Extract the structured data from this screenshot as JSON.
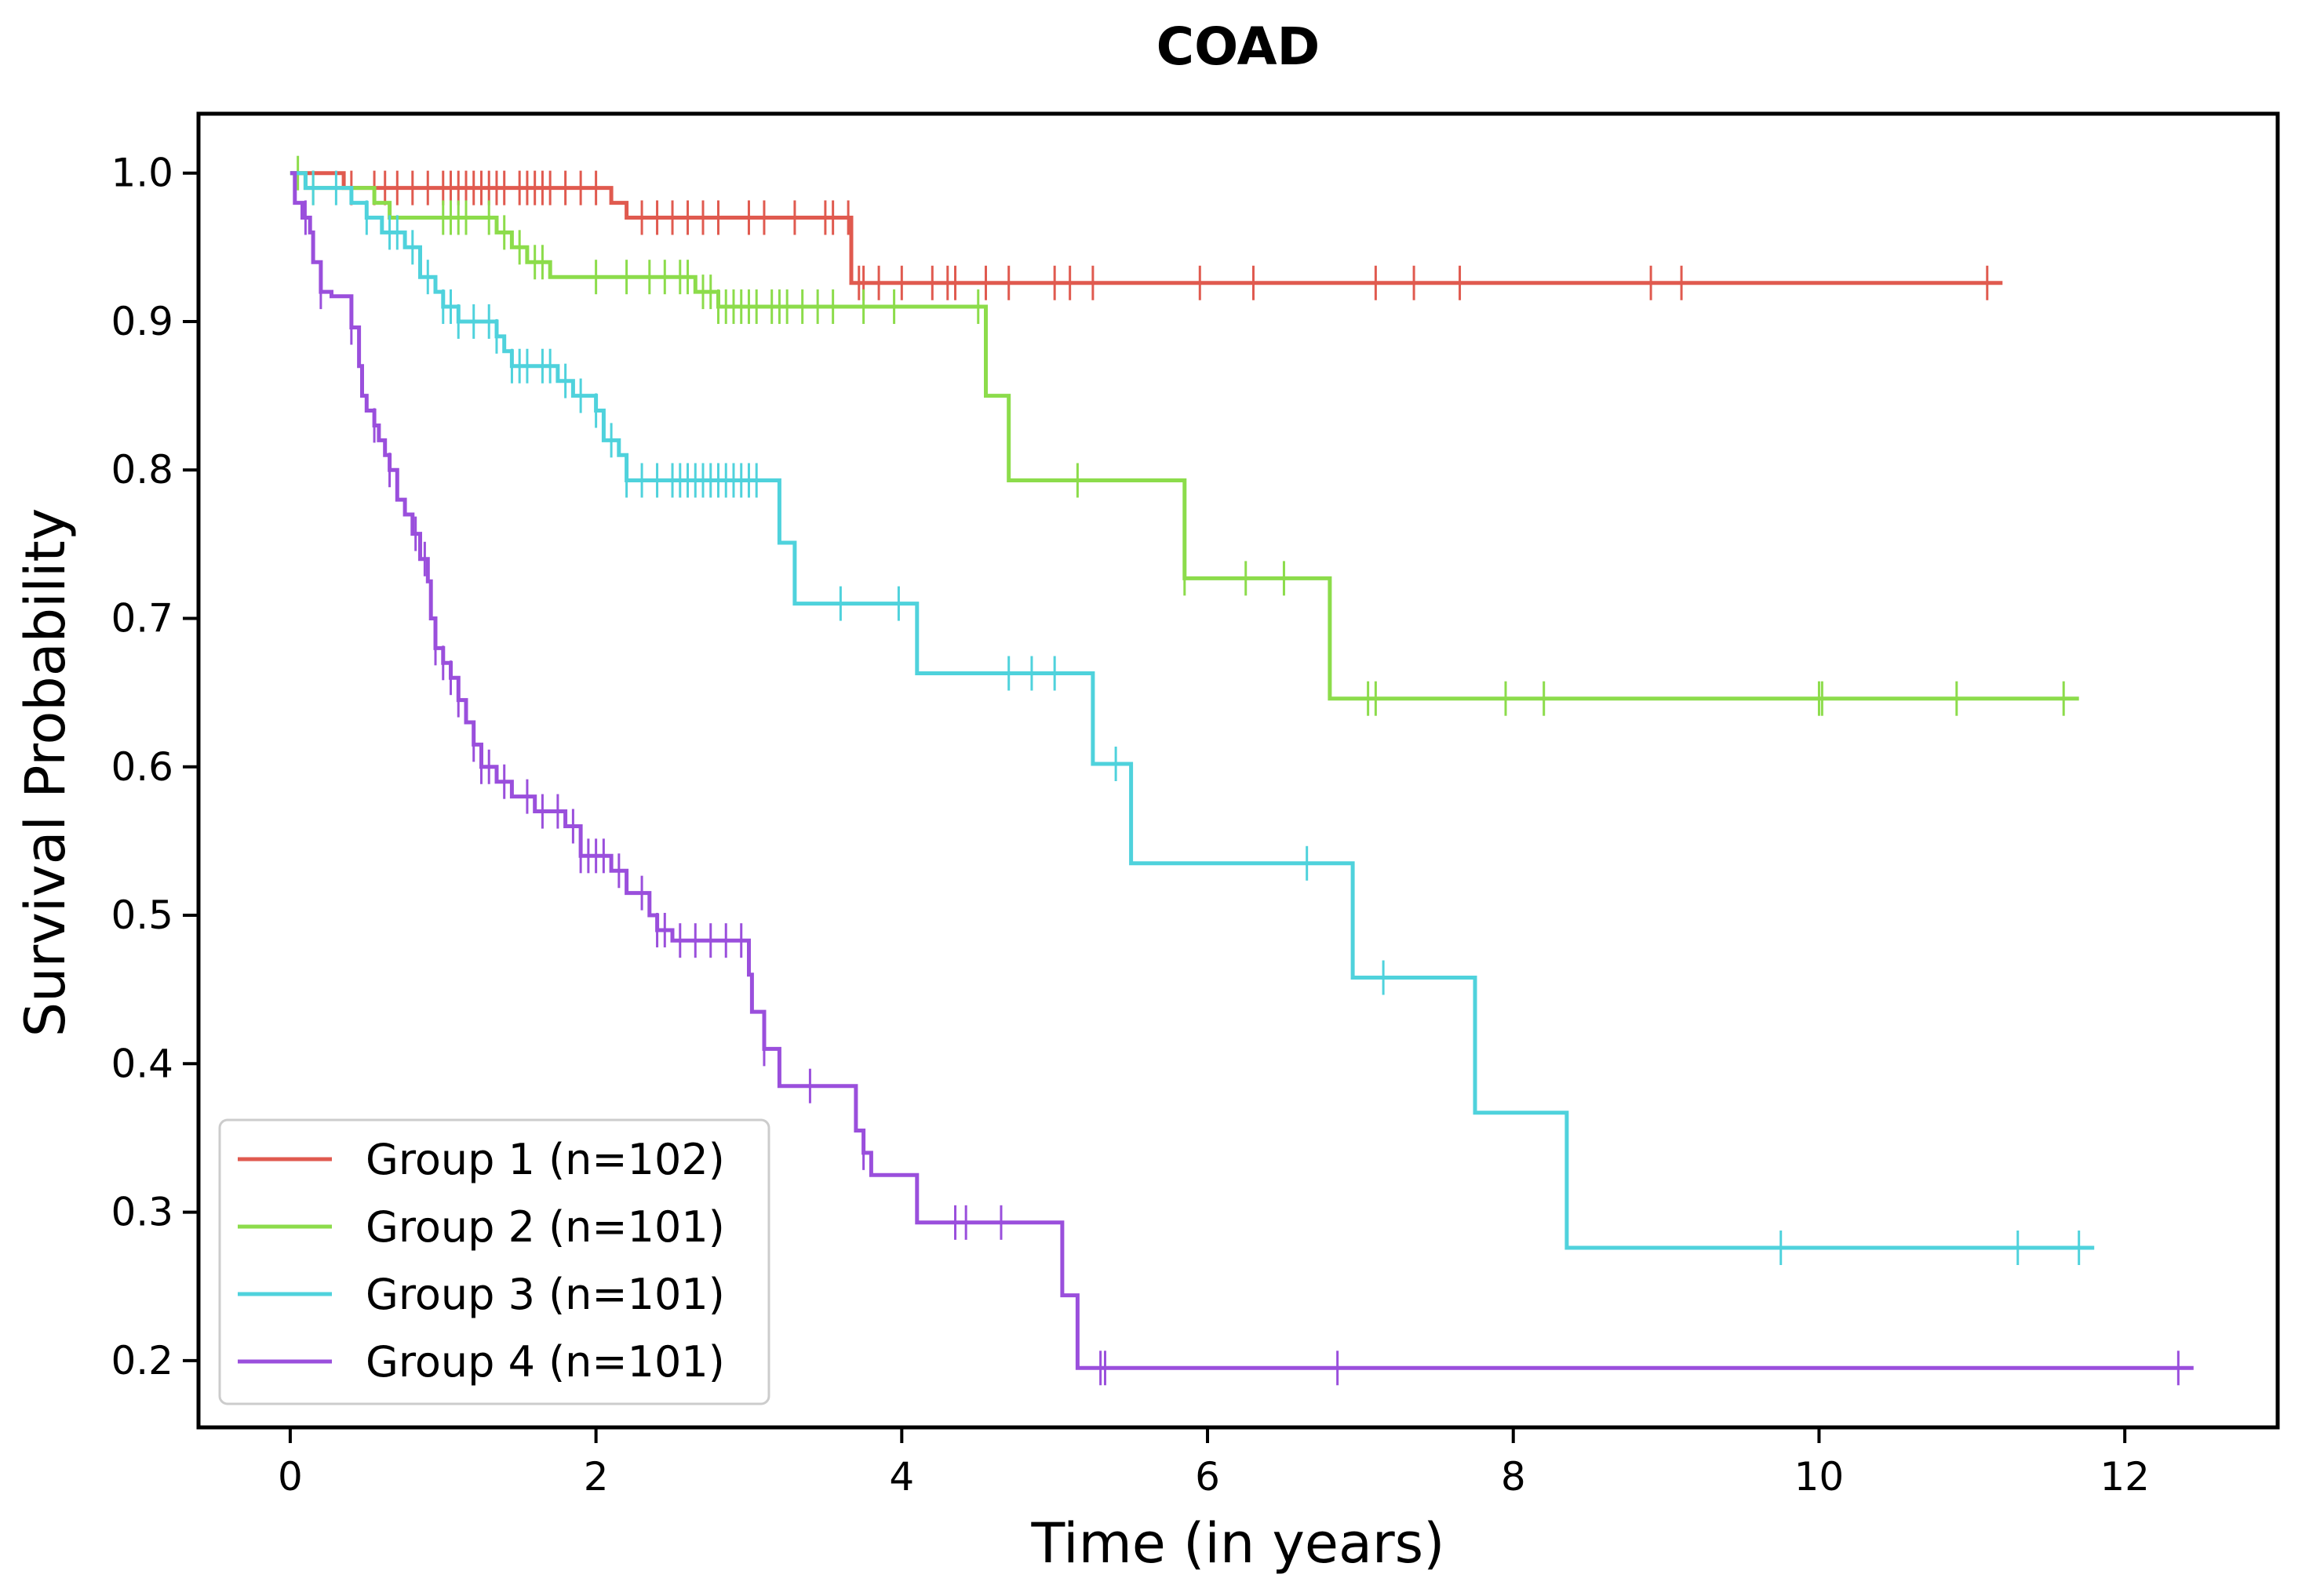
{
  "chart_data": {
    "type": "line",
    "subtype": "kaplan-meier",
    "title": "COAD",
    "xlabel": "Time (in years)",
    "ylabel": "Survival Probability",
    "xlim": [
      -0.6,
      13.0
    ],
    "ylim": [
      0.155,
      1.04
    ],
    "xticks": [
      0,
      2,
      4,
      6,
      8,
      10,
      12
    ],
    "yticks": [
      0.2,
      0.3,
      0.4,
      0.5,
      0.6,
      0.7,
      0.8,
      0.9,
      1.0
    ],
    "xtick_labels": [
      "0",
      "2",
      "4",
      "6",
      "8",
      "10",
      "12"
    ],
    "ytick_labels": [
      "0.2",
      "0.3",
      "0.4",
      "0.5",
      "0.6",
      "0.7",
      "0.8",
      "0.9",
      "1.0"
    ],
    "grid": false,
    "legend_position": "lower-left",
    "series": [
      {
        "name": "Group 1 (n=102)",
        "color": "#e05a4f",
        "steps": [
          [
            0,
            1.0
          ],
          [
            0.35,
            0.99
          ],
          [
            2.1,
            0.98
          ],
          [
            2.2,
            0.97
          ],
          [
            3.67,
            0.926
          ],
          [
            11.2,
            0.926
          ]
        ],
        "censor": [
          0.4,
          0.55,
          0.62,
          0.7,
          0.8,
          0.9,
          1.0,
          1.05,
          1.1,
          1.15,
          1.2,
          1.25,
          1.3,
          1.35,
          1.4,
          1.5,
          1.55,
          1.6,
          1.65,
          1.7,
          1.8,
          1.9,
          2.0,
          2.3,
          2.4,
          2.5,
          2.6,
          2.7,
          2.8,
          3.0,
          3.1,
          3.3,
          3.5,
          3.55,
          3.65,
          3.72,
          3.75,
          3.85,
          4.0,
          4.2,
          4.3,
          4.35,
          4.55,
          4.7,
          5.0,
          5.1,
          5.25,
          5.95,
          6.3,
          7.1,
          7.35,
          7.65,
          8.9,
          9.1,
          11.1
        ]
      },
      {
        "name": "Group 2 (n=101)",
        "color": "#8cdc4b",
        "steps": [
          [
            0,
            1.0
          ],
          [
            0.1,
            0.99
          ],
          [
            0.55,
            0.98
          ],
          [
            0.65,
            0.97
          ],
          [
            1.35,
            0.96
          ],
          [
            1.45,
            0.95
          ],
          [
            1.55,
            0.94
          ],
          [
            1.7,
            0.93
          ],
          [
            2.65,
            0.92
          ],
          [
            2.8,
            0.91
          ],
          [
            4.55,
            0.85
          ],
          [
            4.7,
            0.793
          ],
          [
            5.85,
            0.727
          ],
          [
            6.8,
            0.646
          ],
          [
            11.7,
            0.646
          ]
        ],
        "censor": [
          0.05,
          0.15,
          1.0,
          1.05,
          1.1,
          1.15,
          1.3,
          1.4,
          1.5,
          1.6,
          1.65,
          2.0,
          2.2,
          2.35,
          2.45,
          2.55,
          2.6,
          2.7,
          2.75,
          2.8,
          2.85,
          2.9,
          2.95,
          3.0,
          3.05,
          3.15,
          3.2,
          3.25,
          3.35,
          3.45,
          3.55,
          3.75,
          3.95,
          4.5,
          5.15,
          5.85,
          6.25,
          6.5,
          7.05,
          7.1,
          7.95,
          8.2,
          10.0,
          10.02,
          10.9,
          11.6
        ]
      },
      {
        "name": "Group 3 (n=101)",
        "color": "#4fd2dc",
        "steps": [
          [
            0,
            1.0
          ],
          [
            0.1,
            0.99
          ],
          [
            0.4,
            0.98
          ],
          [
            0.5,
            0.97
          ],
          [
            0.6,
            0.96
          ],
          [
            0.75,
            0.95
          ],
          [
            0.85,
            0.93
          ],
          [
            0.95,
            0.92
          ],
          [
            1.0,
            0.91
          ],
          [
            1.1,
            0.9
          ],
          [
            1.35,
            0.89
          ],
          [
            1.4,
            0.88
          ],
          [
            1.45,
            0.87
          ],
          [
            1.75,
            0.86
          ],
          [
            1.85,
            0.85
          ],
          [
            2.0,
            0.84
          ],
          [
            2.05,
            0.82
          ],
          [
            2.15,
            0.81
          ],
          [
            2.2,
            0.793
          ],
          [
            3.2,
            0.751
          ],
          [
            3.3,
            0.71
          ],
          [
            4.1,
            0.663
          ],
          [
            5.25,
            0.602
          ],
          [
            5.5,
            0.535
          ],
          [
            6.95,
            0.458
          ],
          [
            7.75,
            0.367
          ],
          [
            8.35,
            0.276
          ],
          [
            11.8,
            0.276
          ]
        ],
        "censor": [
          0.15,
          0.3,
          0.5,
          0.65,
          0.7,
          0.8,
          0.9,
          1.0,
          1.05,
          1.1,
          1.2,
          1.3,
          1.35,
          1.45,
          1.5,
          1.55,
          1.65,
          1.7,
          1.8,
          1.9,
          2.0,
          2.1,
          2.2,
          2.3,
          2.4,
          2.5,
          2.55,
          2.6,
          2.65,
          2.7,
          2.75,
          2.8,
          2.85,
          2.9,
          2.95,
          3.0,
          3.05,
          3.6,
          3.98,
          4.7,
          4.85,
          5.0,
          5.4,
          6.65,
          7.15,
          9.75,
          11.3,
          11.7
        ]
      },
      {
        "name": "Group 4 (n=101)",
        "color": "#9a4fdc",
        "steps": [
          [
            0,
            1.0
          ],
          [
            0.03,
            0.98
          ],
          [
            0.08,
            0.97
          ],
          [
            0.13,
            0.96
          ],
          [
            0.15,
            0.94
          ],
          [
            0.2,
            0.92
          ],
          [
            0.27,
            0.917
          ],
          [
            0.4,
            0.896
          ],
          [
            0.45,
            0.87
          ],
          [
            0.47,
            0.85
          ],
          [
            0.5,
            0.84
          ],
          [
            0.55,
            0.83
          ],
          [
            0.58,
            0.82
          ],
          [
            0.62,
            0.81
          ],
          [
            0.65,
            0.8
          ],
          [
            0.7,
            0.78
          ],
          [
            0.75,
            0.77
          ],
          [
            0.8,
            0.757
          ],
          [
            0.85,
            0.74
          ],
          [
            0.9,
            0.725
          ],
          [
            0.92,
            0.7
          ],
          [
            0.95,
            0.68
          ],
          [
            1.0,
            0.67
          ],
          [
            1.05,
            0.66
          ],
          [
            1.1,
            0.645
          ],
          [
            1.15,
            0.63
          ],
          [
            1.2,
            0.615
          ],
          [
            1.25,
            0.6
          ],
          [
            1.35,
            0.59
          ],
          [
            1.45,
            0.58
          ],
          [
            1.6,
            0.57
          ],
          [
            1.8,
            0.56
          ],
          [
            1.9,
            0.54
          ],
          [
            2.1,
            0.53
          ],
          [
            2.2,
            0.515
          ],
          [
            2.35,
            0.5
          ],
          [
            2.4,
            0.49
          ],
          [
            2.5,
            0.483
          ],
          [
            3.0,
            0.46
          ],
          [
            3.02,
            0.435
          ],
          [
            3.1,
            0.41
          ],
          [
            3.2,
            0.385
          ],
          [
            3.7,
            0.355
          ],
          [
            3.75,
            0.34
          ],
          [
            3.8,
            0.325
          ],
          [
            4.1,
            0.293
          ],
          [
            5.05,
            0.244
          ],
          [
            5.15,
            0.195
          ],
          [
            12.45,
            0.195
          ]
        ],
        "censor": [
          0.1,
          0.2,
          0.4,
          0.55,
          0.65,
          0.82,
          0.88,
          0.95,
          1.0,
          1.05,
          1.1,
          1.2,
          1.25,
          1.3,
          1.4,
          1.55,
          1.65,
          1.75,
          1.85,
          1.9,
          1.95,
          2.0,
          2.05,
          2.15,
          2.3,
          2.4,
          2.45,
          2.55,
          2.65,
          2.75,
          2.85,
          2.95,
          3.1,
          3.4,
          3.75,
          4.35,
          4.42,
          4.65,
          5.3,
          5.33,
          6.85,
          12.35
        ]
      }
    ]
  }
}
